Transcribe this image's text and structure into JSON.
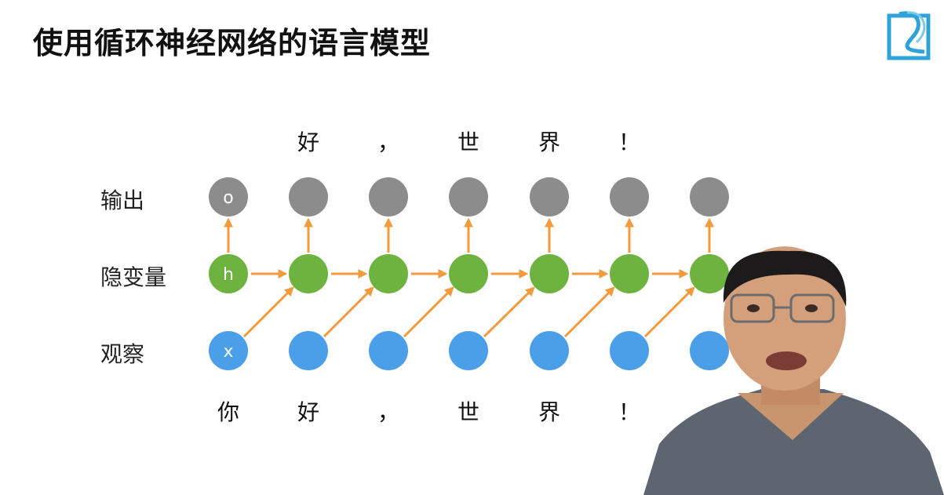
{
  "title": "使用循环神经网络的语言模型",
  "rows": {
    "output": "输出",
    "hidden": "隐变量",
    "observed": "观察"
  },
  "node_labels": {
    "output": "o",
    "hidden": "h",
    "input": "x"
  },
  "output_tokens": [
    "",
    "好",
    "，",
    "世",
    "界",
    "！",
    ""
  ],
  "input_tokens": [
    "你",
    "好",
    "，",
    "世",
    "界",
    "！"
  ],
  "colors": {
    "output_node": "#8c8c8c",
    "hidden_node": "#6eb33f",
    "input_node": "#4a9fe8",
    "arrow": "#f39a3c",
    "logo": "#2fa3d9"
  },
  "icons": {
    "logo": "logo-icon",
    "presenter": "presenter-image"
  }
}
